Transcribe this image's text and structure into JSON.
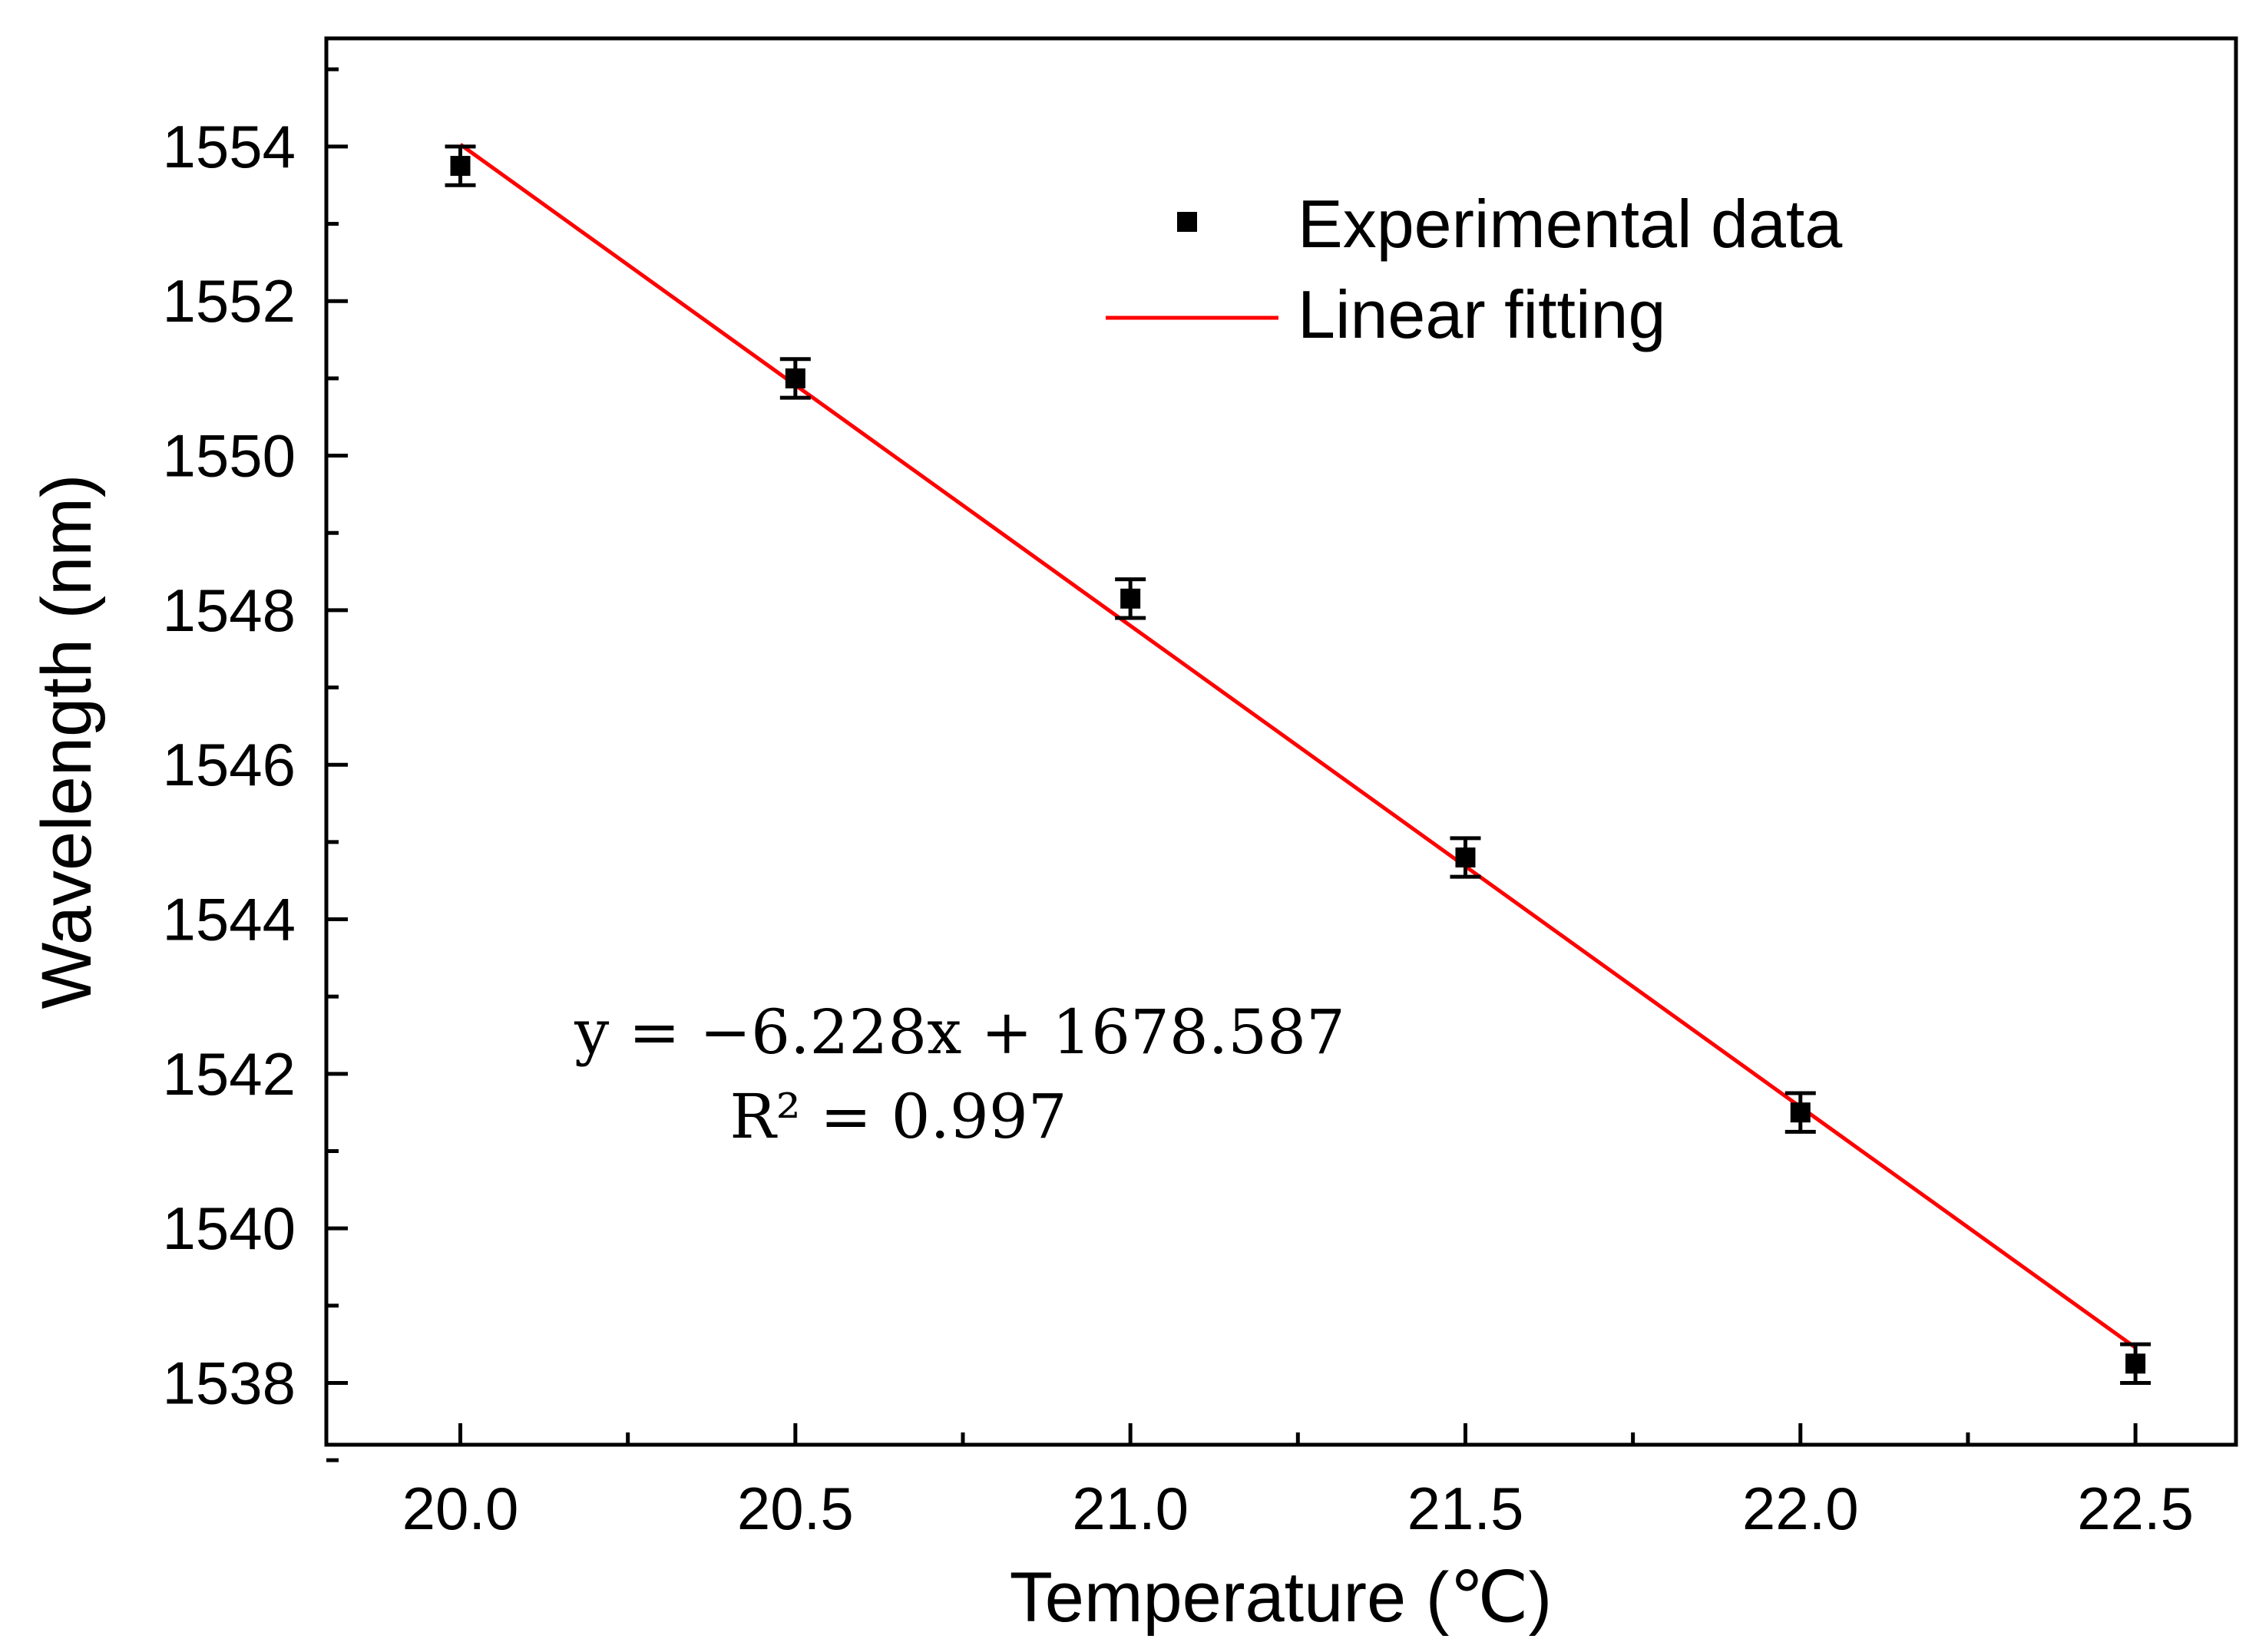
{
  "chart_data": {
    "type": "scatter",
    "xlabel": "Temperature (℃)",
    "ylabel": "Wavelength (nm)",
    "xlim": [
      19.8,
      22.65
    ],
    "ylim": [
      1537.2,
      1555.4
    ],
    "xticks": [
      "20.0",
      "20.5",
      "21.0",
      "21.5",
      "22.0",
      "22.5"
    ],
    "xtick_values": [
      20.0,
      20.5,
      21.0,
      21.5,
      22.0,
      22.5
    ],
    "yticks": [
      "1538",
      "1540",
      "1542",
      "1544",
      "1546",
      "1548",
      "1550",
      "1552",
      "1554"
    ],
    "ytick_values": [
      1538,
      1540,
      1542,
      1544,
      1546,
      1548,
      1550,
      1552,
      1554
    ],
    "grid": false,
    "legend_position": "top-right",
    "series": [
      {
        "name": "Experimental data",
        "kind": "scatter",
        "color": "#000000",
        "x": [
          20.0,
          20.5,
          21.0,
          21.5,
          22.0,
          22.5
        ],
        "y": [
          1553.75,
          1551.0,
          1548.15,
          1544.8,
          1541.5,
          1538.25
        ],
        "error": [
          0.25,
          0.25,
          0.25,
          0.25,
          0.25,
          0.25
        ]
      },
      {
        "name": "Linear fitting",
        "kind": "line",
        "color": "#ff0000",
        "slope": -6.228,
        "intercept": 1678.587,
        "x_range": [
          20.0,
          22.5
        ]
      }
    ],
    "annotations": {
      "equation": "y = −6.228x + 1678.587",
      "r_squared": "R² = 0.997"
    }
  }
}
